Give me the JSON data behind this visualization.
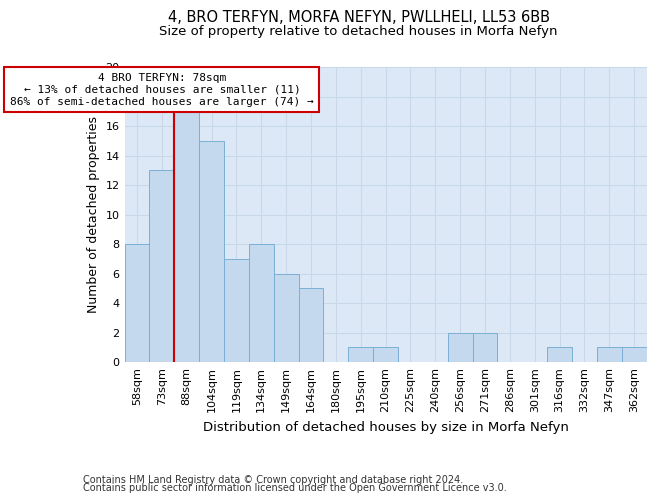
{
  "title": "4, BRO TERFYN, MORFA NEFYN, PWLLHELI, LL53 6BB",
  "subtitle": "Size of property relative to detached houses in Morfa Nefyn",
  "xlabel": "Distribution of detached houses by size in Morfa Nefyn",
  "ylabel": "Number of detached properties",
  "categories": [
    "58sqm",
    "73sqm",
    "88sqm",
    "104sqm",
    "119sqm",
    "134sqm",
    "149sqm",
    "164sqm",
    "180sqm",
    "195sqm",
    "210sqm",
    "225sqm",
    "240sqm",
    "256sqm",
    "271sqm",
    "286sqm",
    "301sqm",
    "316sqm",
    "332sqm",
    "347sqm",
    "362sqm"
  ],
  "values": [
    8,
    13,
    17,
    15,
    7,
    8,
    6,
    5,
    0,
    1,
    1,
    0,
    0,
    2,
    2,
    0,
    0,
    1,
    0,
    1,
    1
  ],
  "bar_color": "#c5d9ee",
  "bar_edge_color": "#7aafd4",
  "annotation_text": "4 BRO TERFYN: 78sqm\n← 13% of detached houses are smaller (11)\n86% of semi-detached houses are larger (74) →",
  "annotation_box_color": "white",
  "annotation_box_edge_color": "#cc0000",
  "red_line_color": "#cc0000",
  "ylim": [
    0,
    20
  ],
  "yticks": [
    0,
    2,
    4,
    6,
    8,
    10,
    12,
    14,
    16,
    18,
    20
  ],
  "grid_color": "#c8d8e8",
  "background_color": "#dce8f5",
  "footer_line1": "Contains HM Land Registry data © Crown copyright and database right 2024.",
  "footer_line2": "Contains public sector information licensed under the Open Government Licence v3.0.",
  "title_fontsize": 10.5,
  "subtitle_fontsize": 9.5,
  "xlabel_fontsize": 9.5,
  "ylabel_fontsize": 9,
  "tick_fontsize": 8,
  "annotation_fontsize": 8,
  "footer_fontsize": 7
}
